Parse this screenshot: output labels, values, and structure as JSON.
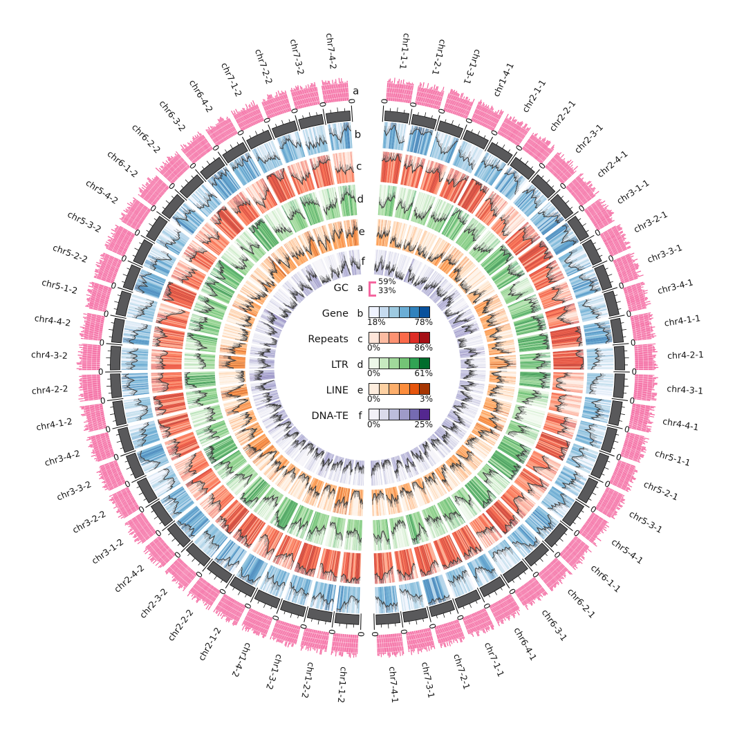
{
  "figure": {
    "kind": "circos-genome-plot",
    "background": "#ffffff"
  },
  "chart_data": {
    "type": "circos",
    "description": "Circular multi-track genome plot: outer pink GC bar track, gray position axis with 0 tick labels, and five heatmap+histogram tracks (Gene, Repeats, LTR, LINE, DNA-TE) for 56 chromosome segments arranged in two half-circles.",
    "segments": [
      "chr1-1-1",
      "chr1-2-1",
      "chr1-3-1",
      "chr1-4-1",
      "chr2-1-1",
      "chr2-2-1",
      "chr2-3-1",
      "chr2-4-1",
      "chr3-1-1",
      "chr3-2-1",
      "chr3-3-1",
      "chr3-4-1",
      "chr4-1-1",
      "chr4-2-1",
      "chr4-3-1",
      "chr4-4-1",
      "chr5-1-1",
      "chr5-2-1",
      "chr5-3-1",
      "chr5-4-1",
      "chr6-1-1",
      "chr6-2-1",
      "chr6-3-1",
      "chr6-4-1",
      "chr7-1-1",
      "chr7-2-1",
      "chr7-3-1",
      "chr7-4-1",
      "chr1-1-2",
      "chr1-2-2",
      "chr1-3-2",
      "chr1-4-2",
      "chr2-1-2",
      "chr2-2-2",
      "chr2-3-2",
      "chr2-4-2",
      "chr3-1-2",
      "chr3-2-2",
      "chr3-3-2",
      "chr3-4-2",
      "chr4-1-2",
      "chr4-2-2",
      "chr4-3-2",
      "chr4-4-2",
      "chr5-1-2",
      "chr5-2-2",
      "chr5-3-2",
      "chr5-4-2",
      "chr6-1-2",
      "chr6-2-2",
      "chr6-3-2",
      "chr6-4-2",
      "chr7-1-2",
      "chr7-2-2",
      "chr7-3-2",
      "chr7-4-2"
    ],
    "rings": [
      {
        "letter": "a",
        "label": "GC",
        "style": "bar-track",
        "color": "#f4669f",
        "scale": {
          "max": "59%",
          "min": "33%"
        },
        "legend_style": "bracket"
      },
      {
        "letter": "b",
        "label": "Gene",
        "style": "histogram+heatmap",
        "palette": [
          "#eff3ff",
          "#c6dbef",
          "#9ecae1",
          "#6baed6",
          "#3182bd",
          "#08519c"
        ],
        "scale": {
          "min": "18%",
          "max": "78%"
        }
      },
      {
        "letter": "c",
        "label": "Repeats",
        "style": "histogram+heatmap",
        "palette": [
          "#fee5d9",
          "#fcbba1",
          "#fc9272",
          "#fb6a4a",
          "#de2d26",
          "#a50f15"
        ],
        "scale": {
          "min": "0%",
          "max": "86%"
        }
      },
      {
        "letter": "d",
        "label": "LTR",
        "style": "histogram+heatmap",
        "palette": [
          "#edf8e9",
          "#c7e9c0",
          "#a1d99b",
          "#74c476",
          "#31a354",
          "#006d2c"
        ],
        "scale": {
          "min": "0%",
          "max": "61%"
        }
      },
      {
        "letter": "e",
        "label": "LINE",
        "style": "histogram+heatmap",
        "palette": [
          "#feedde",
          "#fdd0a2",
          "#fdae6b",
          "#fd8d3c",
          "#e6550d",
          "#a63603"
        ],
        "scale": {
          "min": "0%",
          "max": "3%"
        }
      },
      {
        "letter": "f",
        "label": "DNA-TE",
        "style": "histogram+heatmap",
        "palette": [
          "#f2f0f7",
          "#dadaeb",
          "#bcbddc",
          "#9e9ac8",
          "#756bb1",
          "#54278f"
        ],
        "scale": {
          "min": "0%",
          "max": "25%"
        }
      }
    ],
    "axis": {
      "origin_tick_label": "0",
      "axis_band_color": "#59595b",
      "tick_color": "#141414",
      "ticks_per_segment": 3
    },
    "layout_hints": {
      "halves": 2,
      "segments_per_half": 28,
      "ring_letter_column_position": "top-gap",
      "legend_position": "center"
    },
    "sampling": {
      "bins_per_segment": 20,
      "gc_bars_per_segment": 24,
      "seed": 1234567
    }
  },
  "colors": {
    "ink": "#141414",
    "profile_line": "#3c3c3c",
    "gc_pink": "#f4669f",
    "axis_gray": "#59595b"
  }
}
